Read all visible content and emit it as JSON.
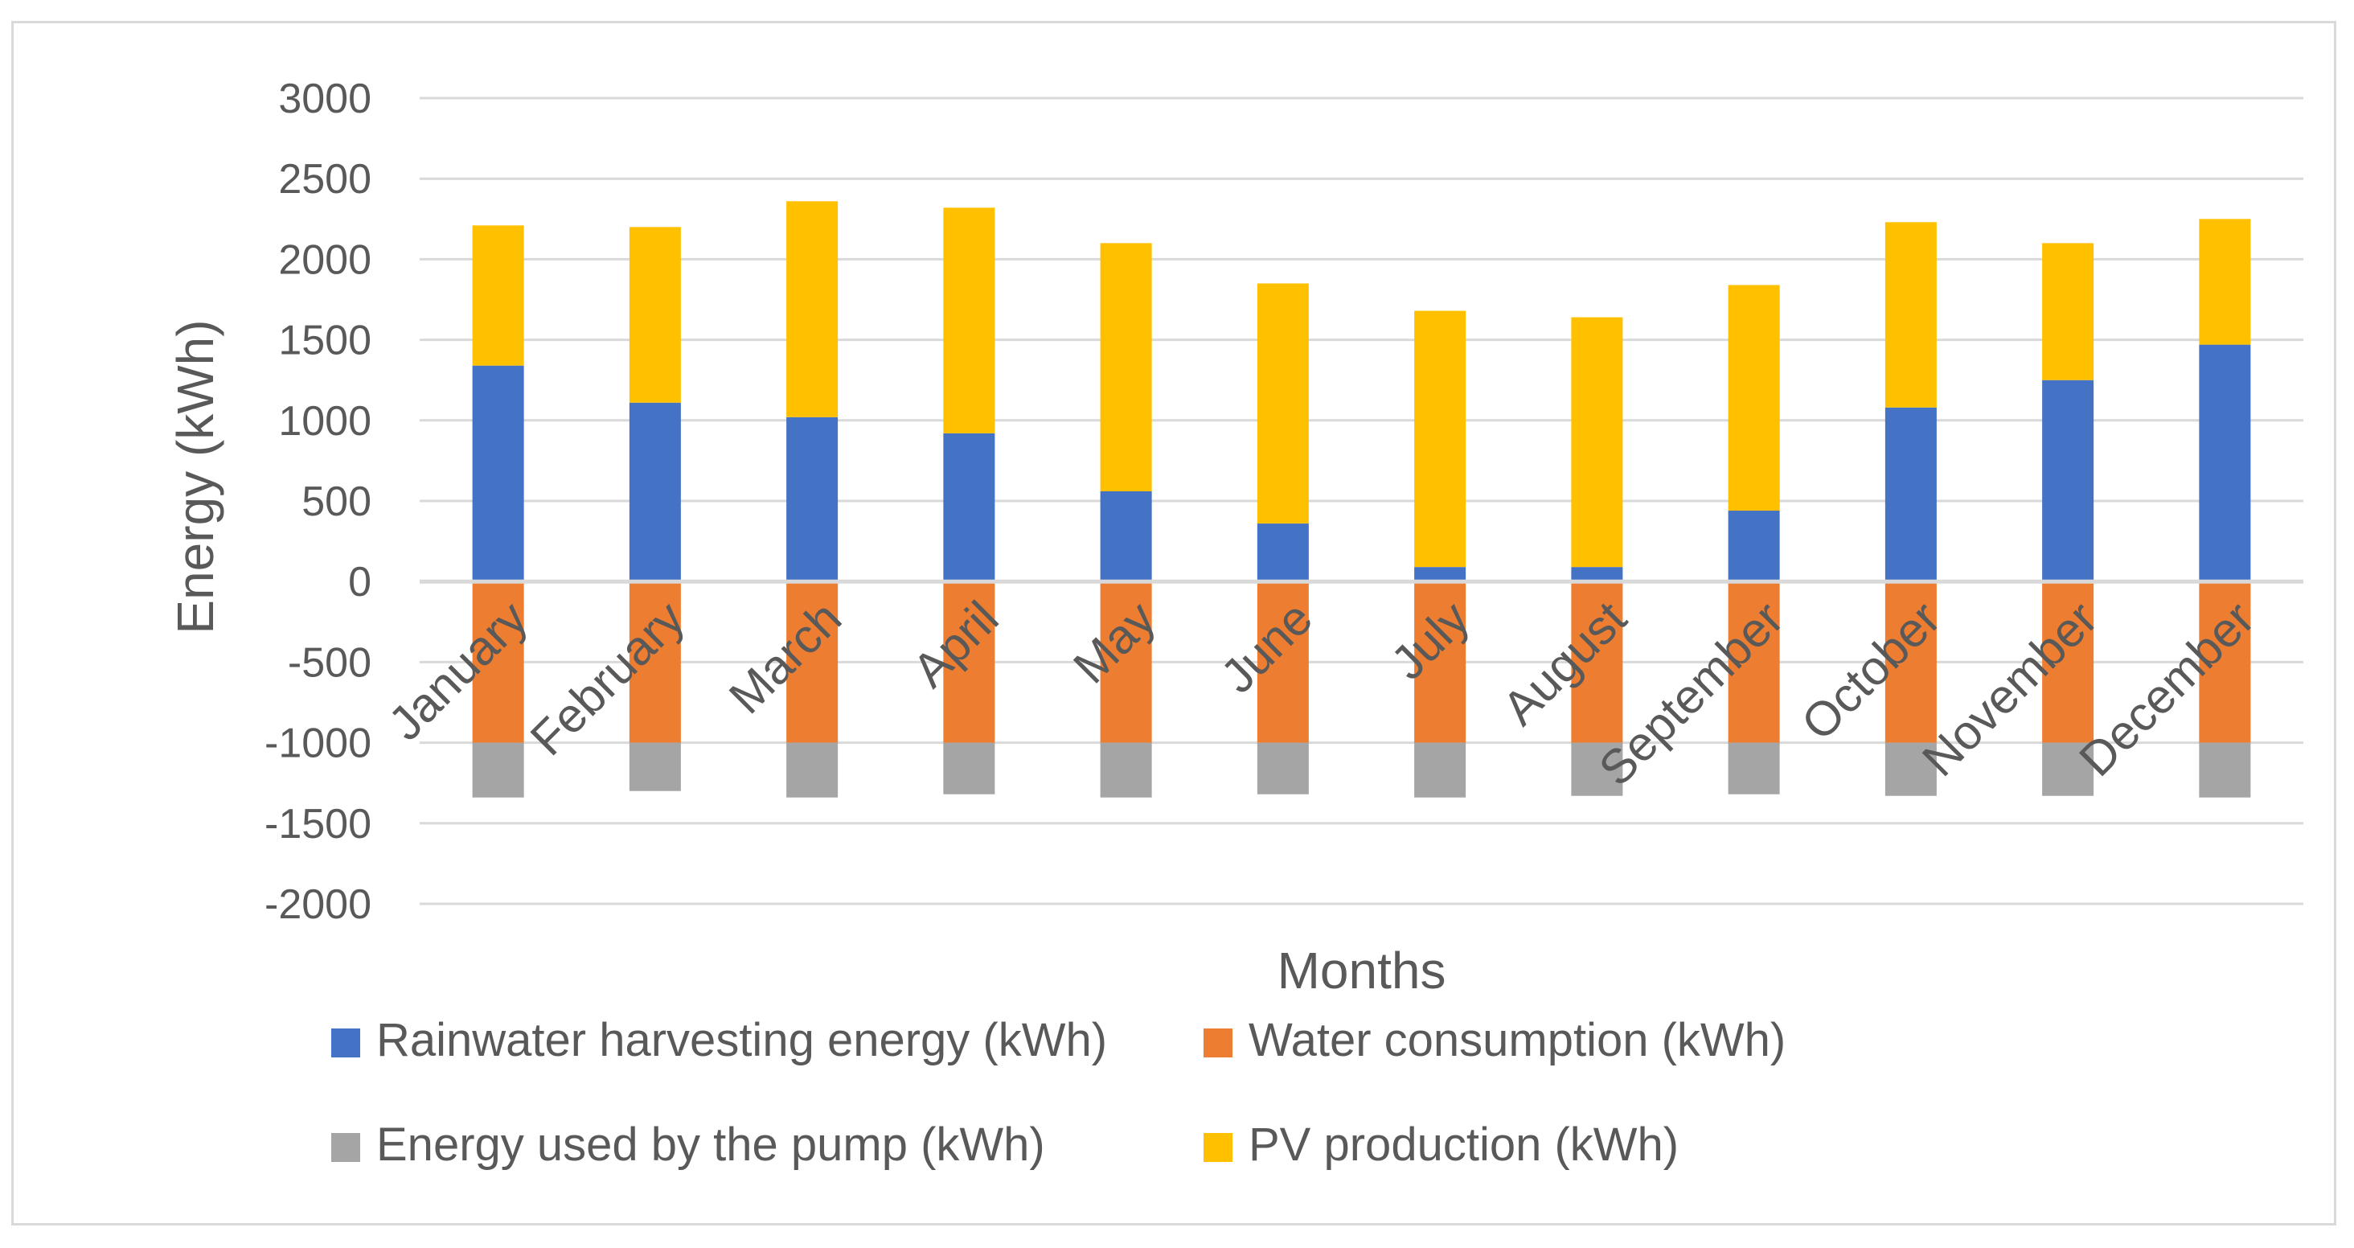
{
  "chart_data": {
    "type": "bar",
    "stacked": true,
    "title": "",
    "xlabel": "Months",
    "ylabel": "Energy (kWh)",
    "ylim": [
      -2000,
      3000
    ],
    "ytick_step": 500,
    "grid": true,
    "legend_position": "bottom",
    "categories": [
      "January",
      "February",
      "March",
      "April",
      "May",
      "June",
      "July",
      "August",
      "September",
      "October",
      "November",
      "December"
    ],
    "series": [
      {
        "name": "Rainwater harvesting energy (kWh)",
        "color": "#4472c4",
        "values": [
          1340,
          1110,
          1020,
          920,
          560,
          360,
          90,
          90,
          440,
          1080,
          1250,
          1470
        ]
      },
      {
        "name": "Water consumption (kWh)",
        "color": "#ed7d31",
        "values": [
          -1000,
          -1000,
          -1000,
          -1000,
          -1000,
          -1000,
          -1000,
          -1000,
          -1000,
          -1000,
          -1000,
          -1000
        ]
      },
      {
        "name": "Energy used by the pump (kWh)",
        "color": "#a5a5a5",
        "values": [
          -340,
          -300,
          -340,
          -320,
          -340,
          -320,
          -340,
          -330,
          -320,
          -330,
          -330,
          -340
        ]
      },
      {
        "name": "PV production (kWh)",
        "color": "#ffc000",
        "values": [
          870,
          1090,
          1340,
          1400,
          1540,
          1490,
          1590,
          1550,
          1400,
          1150,
          850,
          780
        ]
      }
    ]
  }
}
